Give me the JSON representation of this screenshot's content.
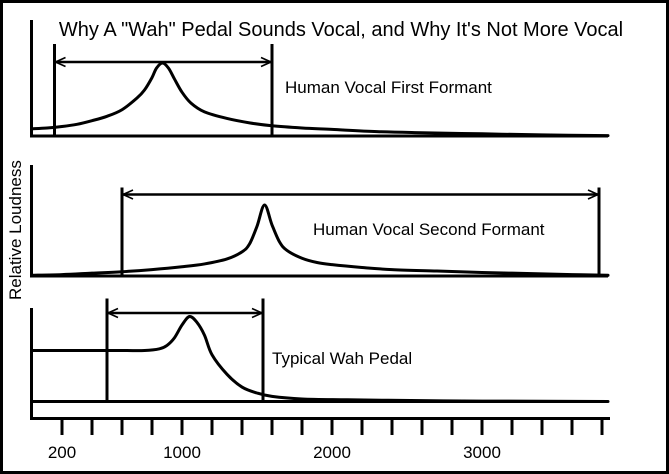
{
  "title": "Why A \"Wah\" Pedal Sounds Vocal, and Why It's Not More Vocal",
  "y_axis_label": "Relative Loudness",
  "x_axis": {
    "tick_labels": [
      "200",
      "1000",
      "2000",
      "3000"
    ],
    "tick_values_hz": [
      200,
      1000,
      2000,
      3000
    ],
    "minor_tick_start_hz": 200,
    "minor_tick_step_hz": 200,
    "minor_tick_end_hz": 3800
  },
  "chart_data": {
    "type": "line",
    "title": "Why A \"Wah\" Pedal Sounds Vocal, and Why It's Not More Vocal",
    "ylabel": "Relative Loudness",
    "xlabel": "",
    "x_range_hz": [
      0,
      3840
    ],
    "x_ticks_labeled_hz": [
      200,
      1000,
      2000,
      3000
    ],
    "x_tick_step_hz": 200,
    "grid": false,
    "legend_position": "none",
    "panels": [
      {
        "label": "Human Vocal First Formant",
        "peak_hz": 870,
        "range_arrow_hz": [
          150,
          1600
        ],
        "points": [
          [
            0,
            0.1
          ],
          [
            100,
            0.11
          ],
          [
            200,
            0.13
          ],
          [
            300,
            0.16
          ],
          [
            400,
            0.21
          ],
          [
            500,
            0.27
          ],
          [
            600,
            0.36
          ],
          [
            700,
            0.52
          ],
          [
            750,
            0.63
          ],
          [
            800,
            0.8
          ],
          [
            830,
            0.93
          ],
          [
            870,
            1.0
          ],
          [
            910,
            0.93
          ],
          [
            950,
            0.78
          ],
          [
            1000,
            0.6
          ],
          [
            1060,
            0.45
          ],
          [
            1150,
            0.33
          ],
          [
            1300,
            0.24
          ],
          [
            1450,
            0.18
          ],
          [
            1600,
            0.14
          ],
          [
            1800,
            0.11
          ],
          [
            2000,
            0.09
          ],
          [
            2300,
            0.06
          ],
          [
            2600,
            0.045
          ],
          [
            3000,
            0.03
          ],
          [
            3400,
            0.015
          ],
          [
            3840,
            0.005
          ]
        ]
      },
      {
        "label": "Human Vocal Second Formant",
        "peak_hz": 1550,
        "range_arrow_hz": [
          600,
          3780
        ],
        "points": [
          [
            0,
            0.01
          ],
          [
            200,
            0.02
          ],
          [
            400,
            0.04
          ],
          [
            600,
            0.06
          ],
          [
            800,
            0.09
          ],
          [
            1000,
            0.13
          ],
          [
            1150,
            0.17
          ],
          [
            1300,
            0.24
          ],
          [
            1400,
            0.34
          ],
          [
            1450,
            0.45
          ],
          [
            1500,
            0.7
          ],
          [
            1550,
            1.0
          ],
          [
            1600,
            0.72
          ],
          [
            1650,
            0.48
          ],
          [
            1700,
            0.36
          ],
          [
            1800,
            0.25
          ],
          [
            1900,
            0.19
          ],
          [
            2000,
            0.16
          ],
          [
            2200,
            0.12
          ],
          [
            2400,
            0.09
          ],
          [
            2700,
            0.07
          ],
          [
            3000,
            0.05
          ],
          [
            3300,
            0.035
          ],
          [
            3600,
            0.02
          ],
          [
            3840,
            0.01
          ]
        ]
      },
      {
        "label": "Typical Wah Pedal",
        "peak_hz": 1050,
        "range_arrow_hz": [
          500,
          1540
        ],
        "points": [
          [
            0,
            0.6
          ],
          [
            300,
            0.6
          ],
          [
            600,
            0.6
          ],
          [
            750,
            0.6
          ],
          [
            850,
            0.62
          ],
          [
            900,
            0.66
          ],
          [
            950,
            0.75
          ],
          [
            1000,
            0.9
          ],
          [
            1050,
            1.0
          ],
          [
            1100,
            0.93
          ],
          [
            1150,
            0.78
          ],
          [
            1200,
            0.55
          ],
          [
            1300,
            0.32
          ],
          [
            1400,
            0.17
          ],
          [
            1500,
            0.1
          ],
          [
            1600,
            0.06
          ],
          [
            1800,
            0.03
          ],
          [
            2100,
            0.02
          ],
          [
            2600,
            0.01
          ],
          [
            3000,
            0.005
          ],
          [
            3840,
            0.0
          ]
        ]
      }
    ]
  }
}
